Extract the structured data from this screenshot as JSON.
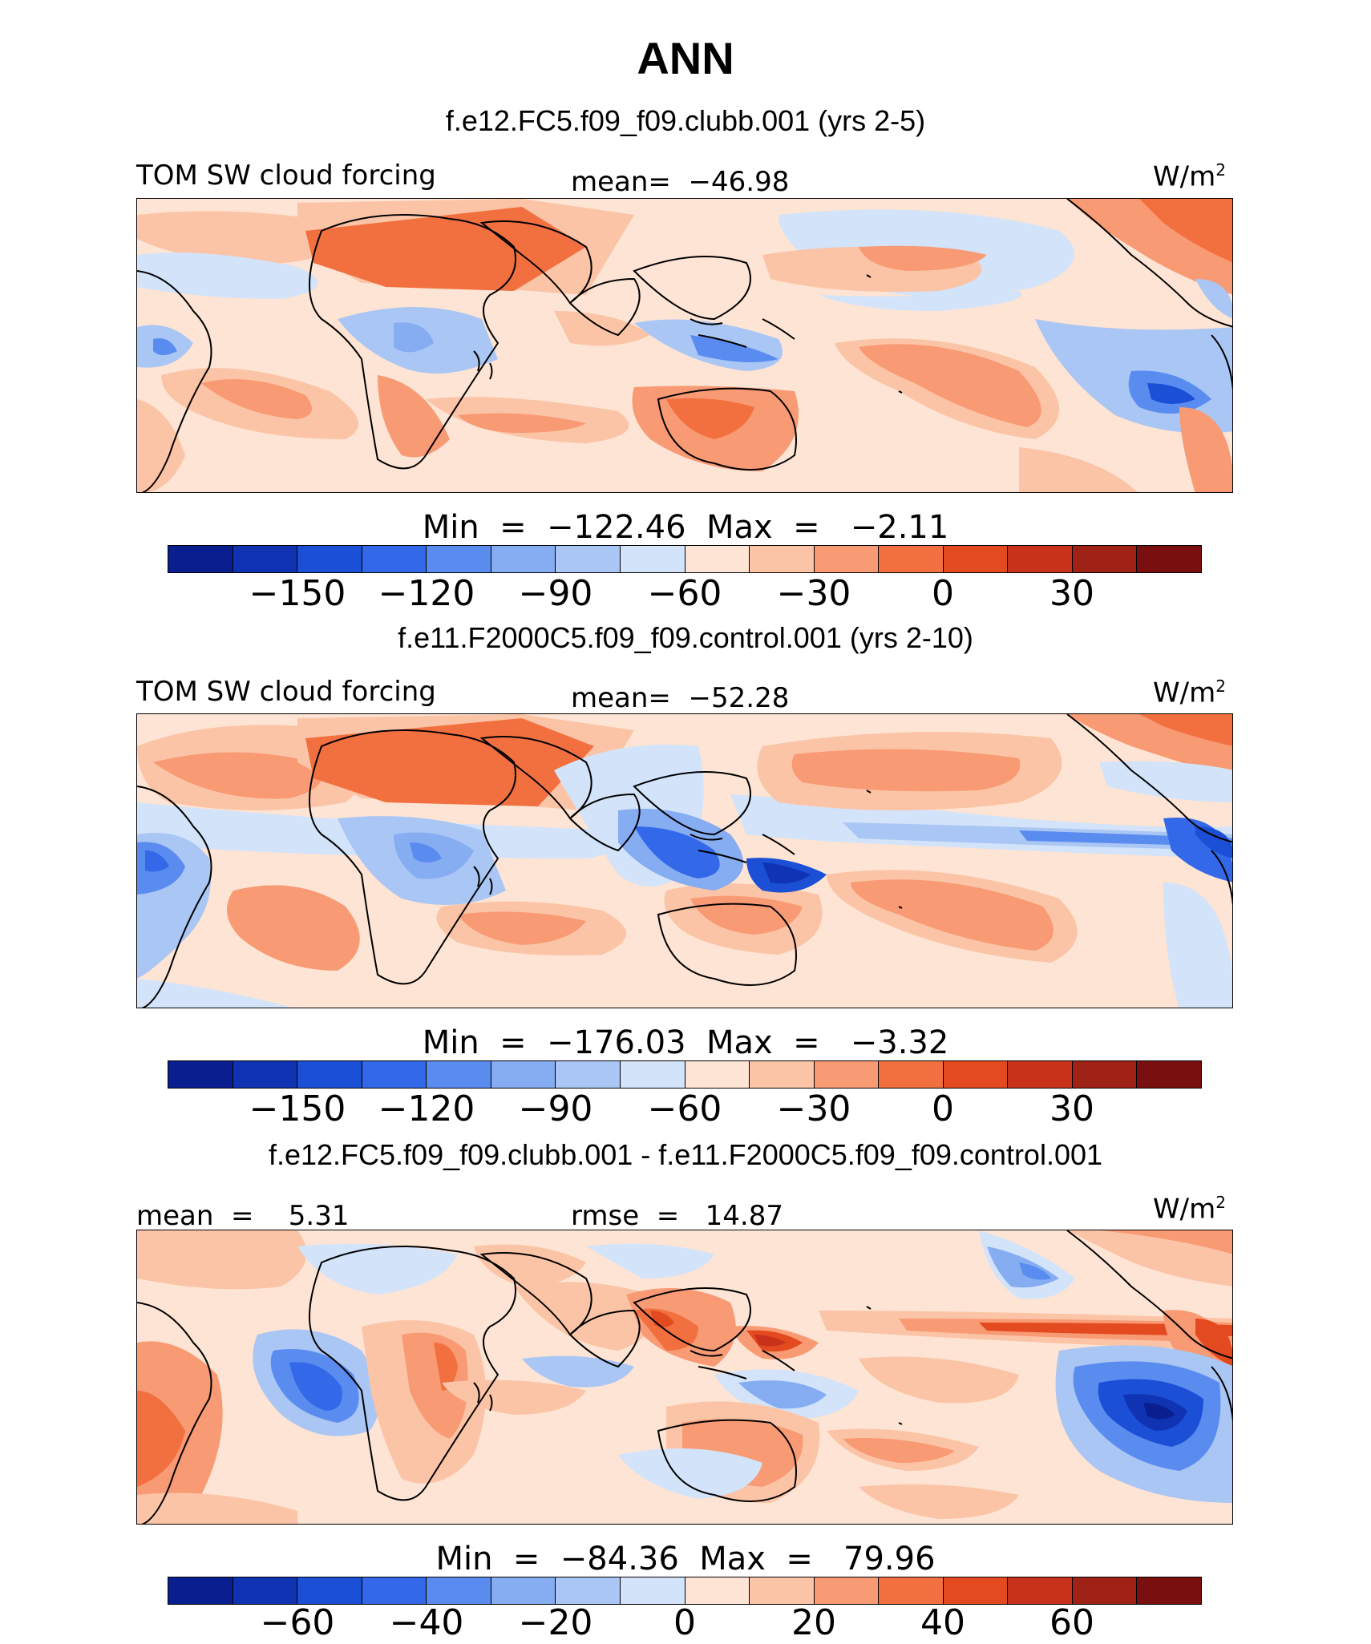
{
  "title": "ANN",
  "panels": [
    {
      "case": "f.e12.FC5.f09_f09.clubb.001 (yrs 2-5)",
      "left_label": "TOM SW cloud forcing",
      "center_label": "mean=  −46.98",
      "units": "W/m",
      "units_sup": "2",
      "minmax": "Min  =  −122.46  Max  =   −2.11",
      "ticks": [
        "−150",
        "−120",
        "−90",
        "−60",
        "−30",
        "0",
        "30"
      ]
    },
    {
      "case": "f.e11.F2000C5.f09_f09.control.001 (yrs 2-10)",
      "left_label": "TOM SW cloud forcing",
      "center_label": "mean=  −52.28",
      "units": "W/m",
      "units_sup": "2",
      "minmax": "Min  =  −176.03  Max  =   −3.32",
      "ticks": [
        "−150",
        "−120",
        "−90",
        "−60",
        "−30",
        "0",
        "30"
      ]
    },
    {
      "case": "f.e12.FC5.f09_f09.clubb.001 - f.e11.F2000C5.f09_f09.control.001",
      "left_label": "mean  =    5.31",
      "center_label": "rmse  =   14.87",
      "units": "W/m",
      "units_sup": "2",
      "minmax": "Min  =  −84.36  Max  =   79.96",
      "ticks": [
        "−60",
        "−40",
        "−20",
        "0",
        "20",
        "40",
        "60"
      ]
    }
  ],
  "colorbar_colors": [
    "#0a1f8f",
    "#0f33b3",
    "#1a4fd6",
    "#3369e8",
    "#5a8cf0",
    "#86acf2",
    "#aac6f4",
    "#d2e3fa",
    "#fde4d4",
    "#fcc4a6",
    "#f89a74",
    "#f2703f",
    "#e44a20",
    "#c9321a",
    "#a02116",
    "#7a0f0f"
  ]
}
